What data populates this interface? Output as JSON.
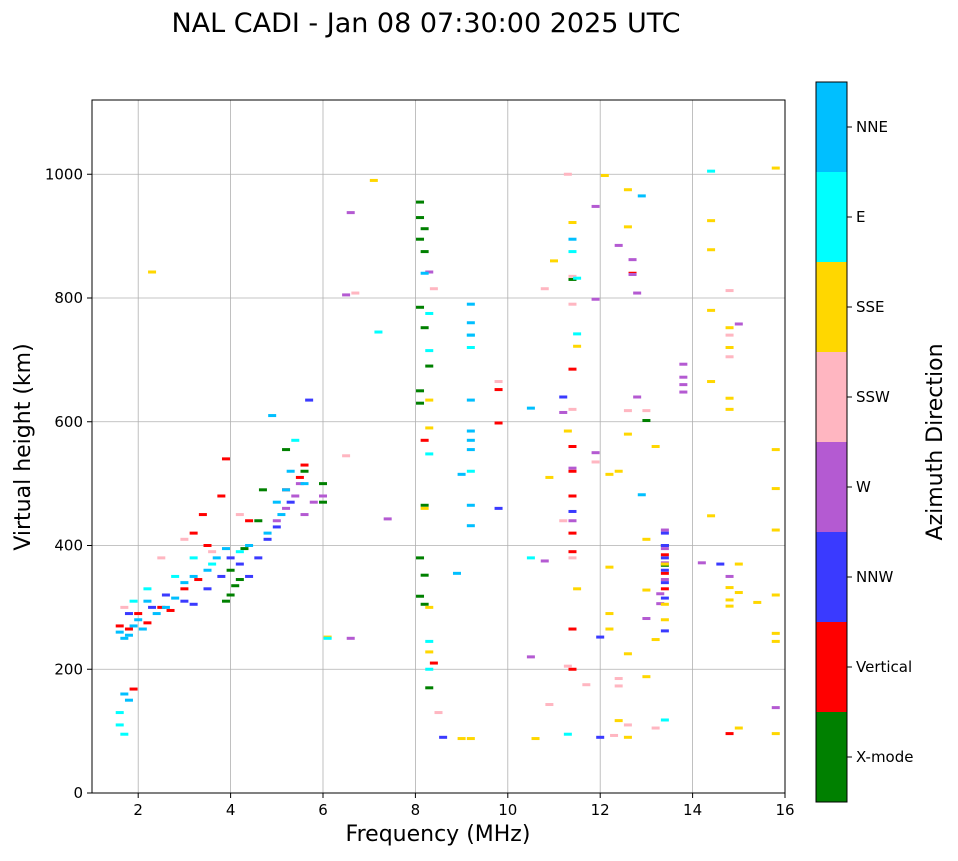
{
  "chart_data": {
    "type": "scatter",
    "title": "NAL CADI - Jan 08 07:30:00 2025 UTC",
    "xlabel": "Frequency (MHz)",
    "ylabel": "Virtual height (km)",
    "xlim": [
      1,
      16
    ],
    "ylim": [
      0,
      1120
    ],
    "xticks": [
      2,
      4,
      6,
      8,
      10,
      12,
      14,
      16
    ],
    "xtick_labels": [
      "2",
      "4",
      "6",
      "8",
      "10",
      "12",
      "14",
      "16"
    ],
    "yticks": [
      0,
      200,
      400,
      600,
      800,
      1000
    ],
    "ytick_labels": [
      "0",
      "200",
      "400",
      "600",
      "800",
      "1000"
    ],
    "grid": true,
    "colorbar": {
      "title": "Azimuth Direction",
      "categories": [
        "X-mode",
        "Vertical",
        "NNW",
        "W",
        "SSW",
        "SSE",
        "E",
        "NNE"
      ],
      "colors": [
        "#008000",
        "#ff0000",
        "#3a3aff",
        "#b45ad2",
        "#ffb6c1",
        "#ffd700",
        "#00ffff",
        "#00bfff"
      ]
    },
    "series": [
      {
        "name": "X-mode",
        "points": [
          [
            4.0,
            320
          ],
          [
            4.1,
            335
          ],
          [
            3.9,
            310
          ],
          [
            4.2,
            345
          ],
          [
            4.0,
            360
          ],
          [
            4.3,
            395
          ],
          [
            4.6,
            440
          ],
          [
            4.7,
            490
          ],
          [
            5.2,
            555
          ],
          [
            5.6,
            520
          ],
          [
            6.0,
            500
          ],
          [
            6.0,
            470
          ],
          [
            8.1,
            955
          ],
          [
            8.1,
            930
          ],
          [
            8.2,
            912
          ],
          [
            8.1,
            895
          ],
          [
            8.2,
            875
          ],
          [
            8.1,
            785
          ],
          [
            8.2,
            752
          ],
          [
            8.3,
            690
          ],
          [
            8.1,
            650
          ],
          [
            8.1,
            630
          ],
          [
            8.2,
            465
          ],
          [
            8.1,
            380
          ],
          [
            8.2,
            352
          ],
          [
            8.1,
            318
          ],
          [
            8.2,
            305
          ],
          [
            8.3,
            170
          ],
          [
            13.0,
            602
          ],
          [
            13.4,
            400
          ],
          [
            13.4,
            368
          ],
          [
            11.4,
            830
          ]
        ]
      },
      {
        "name": "Vertical",
        "points": [
          [
            1.6,
            270
          ],
          [
            1.8,
            265
          ],
          [
            2.0,
            290
          ],
          [
            2.2,
            275
          ],
          [
            2.5,
            300
          ],
          [
            2.7,
            295
          ],
          [
            3.0,
            330
          ],
          [
            3.3,
            345
          ],
          [
            3.5,
            400
          ],
          [
            3.2,
            420
          ],
          [
            3.4,
            450
          ],
          [
            3.9,
            540
          ],
          [
            3.8,
            480
          ],
          [
            4.4,
            440
          ],
          [
            5.2,
            490
          ],
          [
            5.5,
            510
          ],
          [
            5.6,
            530
          ],
          [
            1.9,
            168
          ],
          [
            8.2,
            570
          ],
          [
            8.4,
            210
          ],
          [
            9.8,
            652
          ],
          [
            9.8,
            598
          ],
          [
            11.4,
            685
          ],
          [
            11.4,
            560
          ],
          [
            11.4,
            520
          ],
          [
            11.4,
            480
          ],
          [
            11.4,
            420
          ],
          [
            11.4,
            390
          ],
          [
            11.4,
            265
          ],
          [
            11.4,
            200
          ],
          [
            13.4,
            385
          ],
          [
            13.4,
            355
          ],
          [
            13.4,
            330
          ],
          [
            12.7,
            840
          ],
          [
            14.8,
            96
          ]
        ]
      },
      {
        "name": "NNW",
        "points": [
          [
            1.8,
            290
          ],
          [
            2.3,
            300
          ],
          [
            2.6,
            320
          ],
          [
            3.0,
            310
          ],
          [
            3.2,
            305
          ],
          [
            3.5,
            330
          ],
          [
            3.8,
            350
          ],
          [
            4.0,
            380
          ],
          [
            4.2,
            370
          ],
          [
            4.4,
            350
          ],
          [
            4.6,
            380
          ],
          [
            4.8,
            410
          ],
          [
            5.0,
            430
          ],
          [
            5.3,
            470
          ],
          [
            5.7,
            635
          ],
          [
            8.6,
            90
          ],
          [
            9.8,
            460
          ],
          [
            11.2,
            640
          ],
          [
            11.4,
            455
          ],
          [
            12.0,
            252
          ],
          [
            12.0,
            90
          ],
          [
            13.4,
            420
          ],
          [
            13.4,
            400
          ],
          [
            13.4,
            380
          ],
          [
            13.4,
            360
          ],
          [
            13.4,
            340
          ],
          [
            13.4,
            315
          ],
          [
            13.4,
            262
          ],
          [
            14.6,
            370
          ]
        ]
      },
      {
        "name": "W",
        "points": [
          [
            5.0,
            440
          ],
          [
            5.2,
            460
          ],
          [
            5.4,
            480
          ],
          [
            5.5,
            500
          ],
          [
            5.6,
            450
          ],
          [
            5.8,
            470
          ],
          [
            6.0,
            480
          ],
          [
            6.6,
            938
          ],
          [
            6.5,
            805
          ],
          [
            6.6,
            250
          ],
          [
            7.4,
            443
          ],
          [
            8.3,
            842
          ],
          [
            10.5,
            220
          ],
          [
            10.8,
            375
          ],
          [
            11.2,
            615
          ],
          [
            11.4,
            525
          ],
          [
            11.4,
            440
          ],
          [
            11.9,
            948
          ],
          [
            11.9,
            798
          ],
          [
            11.9,
            550
          ],
          [
            12.4,
            885
          ],
          [
            12.7,
            862
          ],
          [
            12.7,
            838
          ],
          [
            12.8,
            808
          ],
          [
            12.8,
            640
          ],
          [
            13.0,
            282
          ],
          [
            13.4,
            425
          ],
          [
            13.4,
            395
          ],
          [
            13.4,
            372
          ],
          [
            13.4,
            345
          ],
          [
            13.3,
            322
          ],
          [
            13.3,
            306
          ],
          [
            13.8,
            693
          ],
          [
            13.8,
            672
          ],
          [
            13.8,
            660
          ],
          [
            13.8,
            648
          ],
          [
            14.2,
            372
          ],
          [
            14.8,
            350
          ],
          [
            15.0,
            758
          ],
          [
            15.8,
            138
          ]
        ]
      },
      {
        "name": "SSW",
        "points": [
          [
            1.7,
            300
          ],
          [
            2.5,
            380
          ],
          [
            3.0,
            410
          ],
          [
            3.6,
            390
          ],
          [
            4.2,
            450
          ],
          [
            6.7,
            808
          ],
          [
            6.5,
            545
          ],
          [
            8.4,
            815
          ],
          [
            9.8,
            665
          ],
          [
            10.8,
            815
          ],
          [
            11.3,
            1000
          ],
          [
            11.2,
            440
          ],
          [
            11.4,
            835
          ],
          [
            11.4,
            790
          ],
          [
            11.4,
            620
          ],
          [
            11.4,
            380
          ],
          [
            11.7,
            175
          ],
          [
            11.9,
            535
          ],
          [
            12.4,
            185
          ],
          [
            12.4,
            173
          ],
          [
            12.6,
            618
          ],
          [
            12.6,
            110
          ],
          [
            13.0,
            618
          ],
          [
            13.2,
            105
          ],
          [
            14.8,
            812
          ],
          [
            14.8,
            740
          ],
          [
            14.8,
            705
          ],
          [
            8.5,
            130
          ],
          [
            10.9,
            143
          ],
          [
            11.3,
            205
          ],
          [
            12.3,
            93
          ]
        ]
      },
      {
        "name": "SSE",
        "points": [
          [
            2.3,
            842
          ],
          [
            7.1,
            990
          ],
          [
            8.3,
            635
          ],
          [
            8.3,
            590
          ],
          [
            8.2,
            460
          ],
          [
            8.3,
            300
          ],
          [
            8.3,
            228
          ],
          [
            9.0,
            88
          ],
          [
            9.2,
            88
          ],
          [
            10.6,
            88
          ],
          [
            10.9,
            510
          ],
          [
            11.0,
            860
          ],
          [
            11.3,
            585
          ],
          [
            11.4,
            922
          ],
          [
            11.5,
            722
          ],
          [
            11.5,
            330
          ],
          [
            12.1,
            998
          ],
          [
            12.2,
            515
          ],
          [
            12.2,
            365
          ],
          [
            12.2,
            290
          ],
          [
            12.2,
            265
          ],
          [
            12.4,
            520
          ],
          [
            12.4,
            117
          ],
          [
            12.6,
            975
          ],
          [
            12.6,
            915
          ],
          [
            12.6,
            580
          ],
          [
            12.6,
            225
          ],
          [
            12.6,
            90
          ],
          [
            13.0,
            410
          ],
          [
            13.0,
            188
          ],
          [
            13.0,
            328
          ],
          [
            13.2,
            560
          ],
          [
            13.2,
            248
          ],
          [
            13.4,
            370
          ],
          [
            13.4,
            305
          ],
          [
            13.4,
            280
          ],
          [
            14.4,
            925
          ],
          [
            14.4,
            878
          ],
          [
            14.4,
            780
          ],
          [
            14.4,
            665
          ],
          [
            14.4,
            448
          ],
          [
            14.8,
            752
          ],
          [
            14.8,
            720
          ],
          [
            14.8,
            638
          ],
          [
            14.8,
            620
          ],
          [
            14.8,
            332
          ],
          [
            14.8,
            312
          ],
          [
            14.8,
            302
          ],
          [
            15.0,
            370
          ],
          [
            15.0,
            324
          ],
          [
            15.0,
            105
          ],
          [
            15.4,
            308
          ],
          [
            15.8,
            1010
          ],
          [
            15.8,
            555
          ],
          [
            15.8,
            492
          ],
          [
            15.8,
            425
          ],
          [
            15.8,
            320
          ],
          [
            15.8,
            258
          ],
          [
            15.8,
            245
          ],
          [
            15.8,
            96
          ],
          [
            6.1,
            252
          ]
        ]
      },
      {
        "name": "E",
        "points": [
          [
            1.6,
            130
          ],
          [
            1.6,
            110
          ],
          [
            1.7,
            95
          ],
          [
            1.9,
            310
          ],
          [
            2.2,
            330
          ],
          [
            2.8,
            350
          ],
          [
            3.2,
            380
          ],
          [
            3.6,
            370
          ],
          [
            4.2,
            390
          ],
          [
            5.4,
            570
          ],
          [
            6.1,
            250
          ],
          [
            7.2,
            745
          ],
          [
            8.3,
            775
          ],
          [
            8.3,
            715
          ],
          [
            8.3,
            548
          ],
          [
            8.3,
            245
          ],
          [
            8.3,
            200
          ],
          [
            9.2,
            740
          ],
          [
            9.2,
            720
          ],
          [
            9.2,
            520
          ],
          [
            10.5,
            380
          ],
          [
            11.3,
            95
          ],
          [
            11.4,
            875
          ],
          [
            11.5,
            742
          ],
          [
            11.5,
            832
          ],
          [
            13.4,
            118
          ],
          [
            14.4,
            1005
          ]
        ]
      },
      {
        "name": "NNE",
        "points": [
          [
            1.6,
            260
          ],
          [
            1.7,
            250
          ],
          [
            1.8,
            255
          ],
          [
            1.9,
            270
          ],
          [
            2.0,
            280
          ],
          [
            2.1,
            265
          ],
          [
            2.2,
            310
          ],
          [
            2.4,
            290
          ],
          [
            2.6,
            300
          ],
          [
            2.8,
            315
          ],
          [
            3.0,
            340
          ],
          [
            3.2,
            350
          ],
          [
            3.5,
            360
          ],
          [
            3.7,
            380
          ],
          [
            3.9,
            395
          ],
          [
            4.4,
            400
          ],
          [
            4.8,
            420
          ],
          [
            5.0,
            470
          ],
          [
            5.1,
            450
          ],
          [
            5.2,
            490
          ],
          [
            5.3,
            520
          ],
          [
            5.6,
            500
          ],
          [
            1.7,
            160
          ],
          [
            1.8,
            150
          ],
          [
            4.9,
            610
          ],
          [
            8.2,
            840
          ],
          [
            9.2,
            790
          ],
          [
            9.2,
            760
          ],
          [
            9.2,
            740
          ],
          [
            9.2,
            635
          ],
          [
            9.2,
            585
          ],
          [
            9.2,
            570
          ],
          [
            9.2,
            555
          ],
          [
            9.2,
            465
          ],
          [
            9.2,
            432
          ],
          [
            9.0,
            515
          ],
          [
            8.9,
            355
          ],
          [
            10.5,
            622
          ],
          [
            11.4,
            895
          ],
          [
            12.9,
            965
          ],
          [
            12.9,
            482
          ]
        ]
      }
    ]
  }
}
